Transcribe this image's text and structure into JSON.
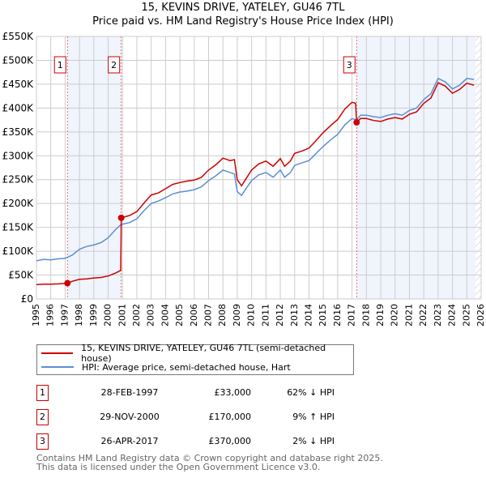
{
  "chart_data": {
    "type": "line",
    "title": "15, KEVINS DRIVE, YATELEY, GU46 7TL",
    "subtitle": "Price paid vs. HM Land Registry's House Price Index (HPI)",
    "xlim": [
      1995,
      2026
    ],
    "ylim": [
      0,
      550000
    ],
    "yticks": [
      0,
      50000,
      100000,
      150000,
      200000,
      250000,
      300000,
      350000,
      400000,
      450000,
      500000,
      550000
    ],
    "ytick_labels": [
      "£0",
      "£50K",
      "£100K",
      "£150K",
      "£200K",
      "£250K",
      "£300K",
      "£350K",
      "£400K",
      "£450K",
      "£500K",
      "£550K"
    ],
    "xticks": [
      "1995",
      "1996",
      "1997",
      "1998",
      "1999",
      "2000",
      "2001",
      "2002",
      "2003",
      "2004",
      "2005",
      "2006",
      "2007",
      "2008",
      "2009",
      "2010",
      "2011",
      "2012",
      "2013",
      "2014",
      "2015",
      "2016",
      "2017",
      "2018",
      "2019",
      "2020",
      "2021",
      "2022",
      "2023",
      "2024",
      "2025",
      "2026"
    ],
    "grid": true,
    "shaded_ranges": [
      [
        1997.16,
        2000.91
      ],
      [
        2017.32,
        2025.6
      ]
    ],
    "hatched_from": 2025.6,
    "series": [
      {
        "name": "15, KEVINS DRIVE, YATELEY, GU46 7TL (semi-detached house)",
        "color": "#cc0000",
        "x": [
          1995,
          1995.5,
          1996,
          1996.5,
          1997,
          1997.16,
          1997.5,
          1998,
          1998.5,
          1999,
          1999.5,
          2000,
          2000.5,
          2000.88,
          2000.91,
          2001.5,
          2002,
          2002.5,
          2003,
          2003.5,
          2004,
          2004.5,
          2005,
          2005.5,
          2006,
          2006.5,
          2007,
          2007.5,
          2008,
          2008.5,
          2008.8,
          2009.0,
          2009.3,
          2009.7,
          2010,
          2010.5,
          2011,
          2011.5,
          2012,
          2012.3,
          2012.7,
          2013,
          2013.5,
          2014,
          2014.5,
          2015,
          2015.5,
          2016,
          2016.5,
          2017,
          2017.25,
          2017.32,
          2017.6,
          2018,
          2018.5,
          2019,
          2019.5,
          2020,
          2020.5,
          2021,
          2021.5,
          2022,
          2022.5,
          2023,
          2023.5,
          2024,
          2024.5,
          2025,
          2025.5
        ],
        "y": [
          30000,
          31000,
          31000,
          31500,
          32500,
          33000,
          37000,
          41000,
          42000,
          44000,
          45000,
          48000,
          54000,
          60000,
          170000,
          175000,
          183000,
          201000,
          218000,
          222000,
          231000,
          240000,
          244000,
          247000,
          249000,
          255000,
          270000,
          281000,
          295000,
          290000,
          292000,
          250000,
          237000,
          256000,
          270000,
          283000,
          289000,
          278000,
          294000,
          278000,
          289000,
          305000,
          310000,
          316000,
          332000,
          349000,
          363000,
          376000,
          398000,
          412000,
          410000,
          370000,
          378000,
          378000,
          374000,
          372000,
          377000,
          380000,
          377000,
          387000,
          392000,
          410000,
          421000,
          453000,
          446000,
          431000,
          439000,
          452000,
          448000
        ]
      },
      {
        "name": "HPI: Average price, semi-detached house, Hart",
        "color": "#5b8fd4",
        "x": [
          1995,
          1995.5,
          1996,
          1996.5,
          1997,
          1997.5,
          1998,
          1998.5,
          1999,
          1999.5,
          2000,
          2000.5,
          2000.9,
          2001.5,
          2002,
          2002.5,
          2003,
          2003.5,
          2004,
          2004.5,
          2005,
          2005.5,
          2006,
          2006.5,
          2007,
          2007.5,
          2008,
          2008.5,
          2008.8,
          2009.0,
          2009.3,
          2009.7,
          2010,
          2010.5,
          2011,
          2011.5,
          2012,
          2012.3,
          2012.7,
          2013,
          2013.5,
          2014,
          2014.5,
          2015,
          2015.5,
          2016,
          2016.5,
          2017,
          2017.3,
          2017.6,
          2018,
          2018.5,
          2019,
          2019.5,
          2020,
          2020.5,
          2021,
          2021.5,
          2022,
          2022.5,
          2023,
          2023.5,
          2024,
          2024.5,
          2025,
          2025.5
        ],
        "y": [
          80000,
          83000,
          82000,
          84000,
          85000,
          92000,
          104000,
          110000,
          113000,
          118000,
          128000,
          145000,
          156000,
          160000,
          168000,
          185000,
          200000,
          205000,
          212000,
          220000,
          224000,
          226000,
          229000,
          235000,
          248000,
          258000,
          270000,
          265000,
          262000,
          225000,
          217000,
          235000,
          248000,
          260000,
          265000,
          255000,
          270000,
          255000,
          265000,
          280000,
          285000,
          290000,
          305000,
          320000,
          333000,
          345000,
          365000,
          378000,
          375000,
          385000,
          385000,
          382000,
          380000,
          385000,
          388000,
          385000,
          395000,
          400000,
          418000,
          430000,
          462000,
          455000,
          440000,
          448000,
          462000,
          460000
        ]
      }
    ],
    "sales": [
      {
        "label": "1",
        "x": 1997.16,
        "y": 33000
      },
      {
        "label": "2",
        "x": 2000.91,
        "y": 170000
      },
      {
        "label": "3",
        "x": 2017.32,
        "y": 370000
      }
    ]
  },
  "title": "15, KEVINS DRIVE, YATELEY, GU46 7TL",
  "subtitle": "Price paid vs. HM Land Registry's House Price Index (HPI)",
  "legend": {
    "property": "15, KEVINS DRIVE, YATELEY, GU46 7TL (semi-detached house)",
    "hpi": "HPI: Average price, semi-detached house, Hart"
  },
  "transactions": [
    {
      "num": "1",
      "date": "28-FEB-1997",
      "price": "£33,000",
      "hpi": "62% ↓ HPI"
    },
    {
      "num": "2",
      "date": "29-NOV-2000",
      "price": "£170,000",
      "hpi": "9% ↑ HPI"
    },
    {
      "num": "3",
      "date": "26-APR-2017",
      "price": "£370,000",
      "hpi": "2% ↓ HPI"
    }
  ],
  "footer": {
    "line1": "Contains HM Land Registry data © Crown copyright and database right 2025.",
    "line2": "This data is licensed under the Open Government Licence v3.0."
  }
}
